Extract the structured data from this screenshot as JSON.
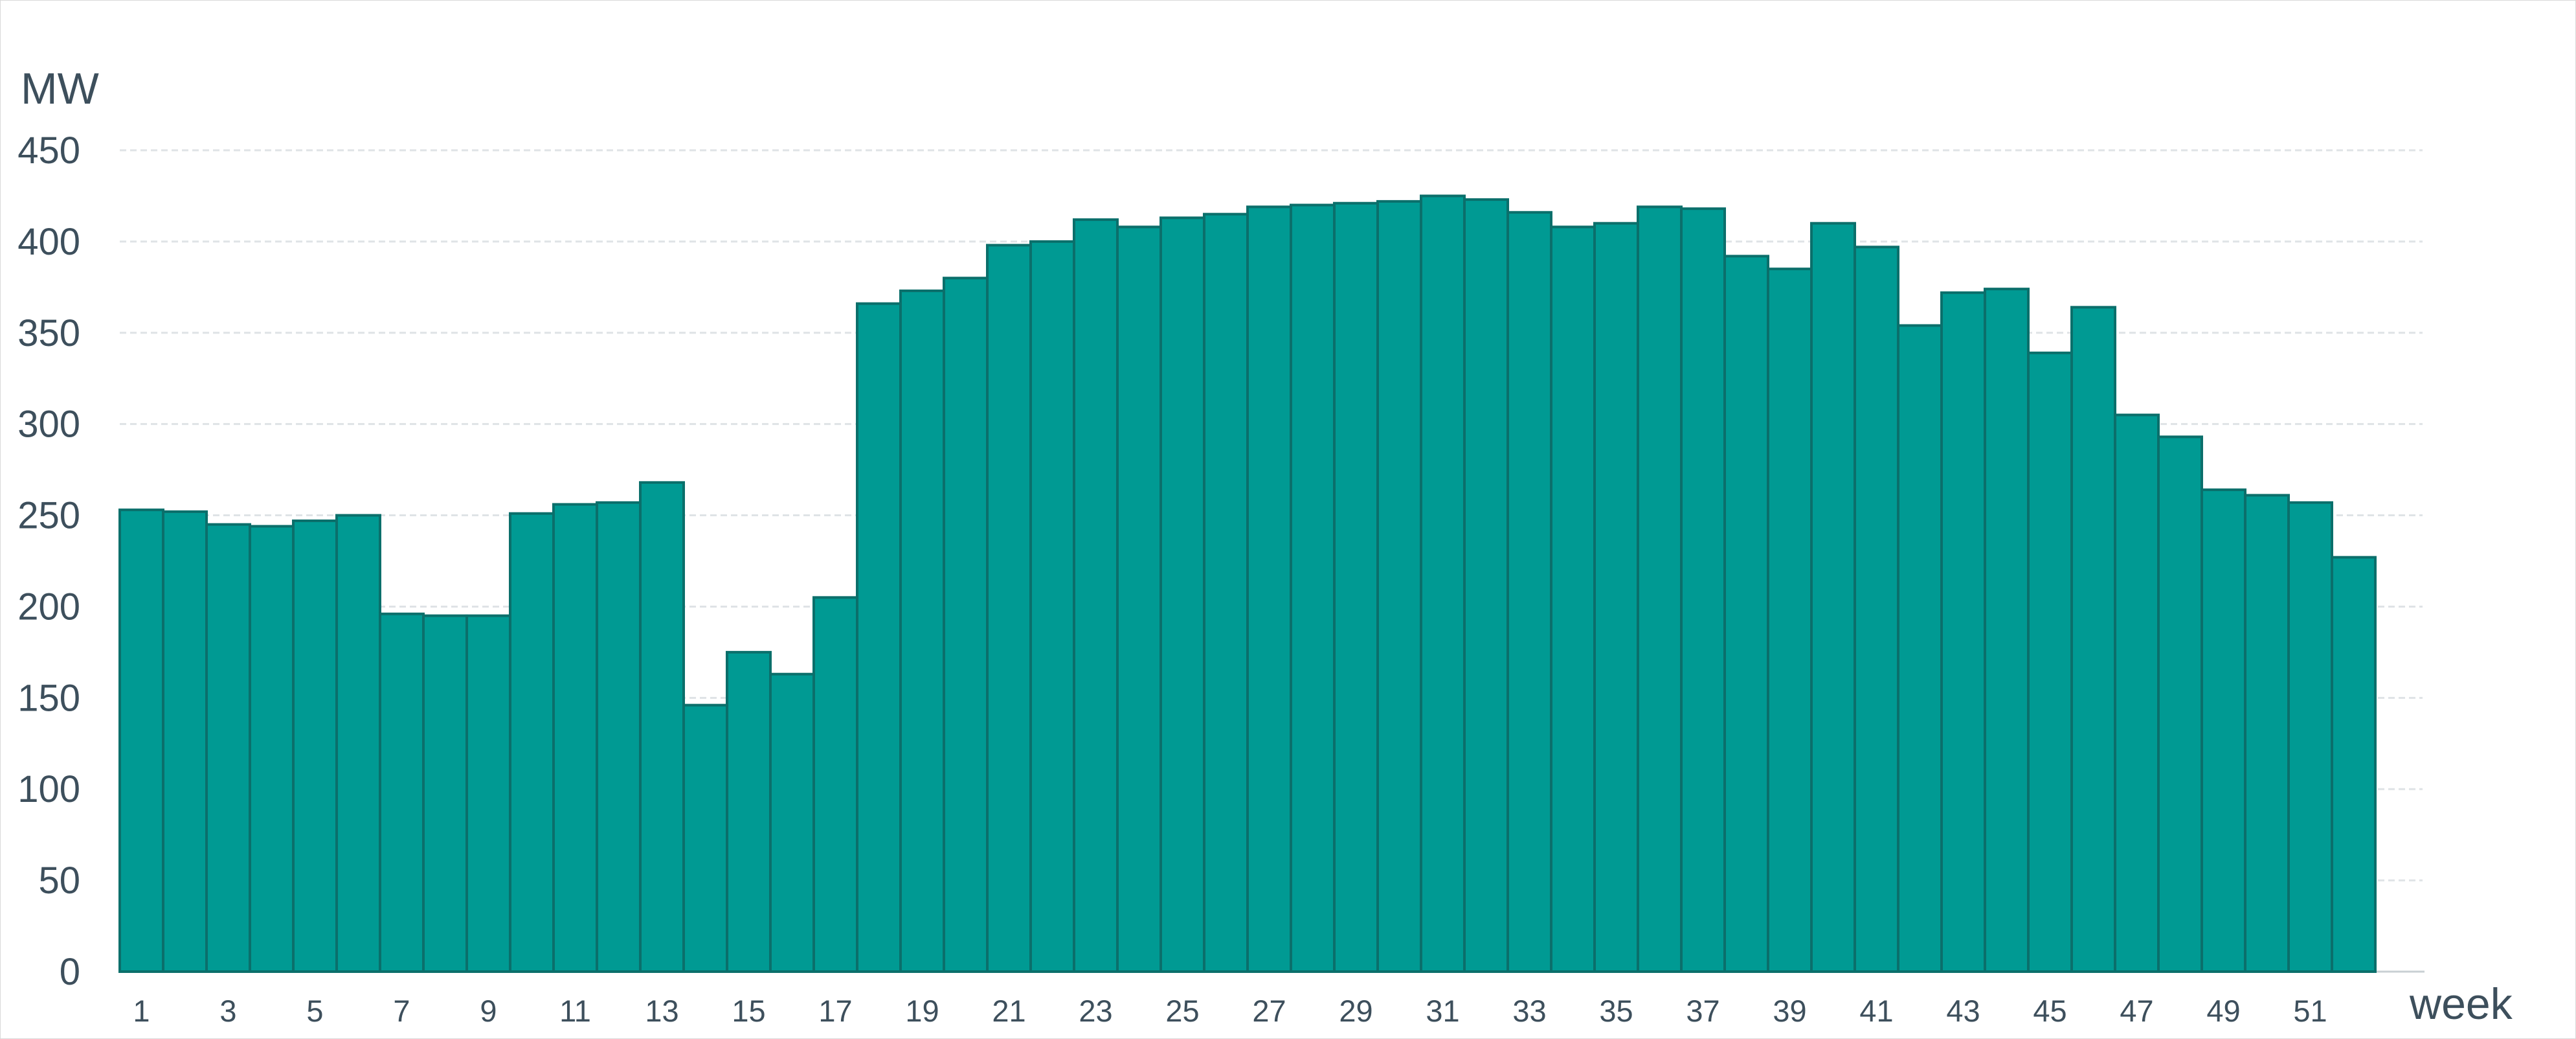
{
  "chart_data": {
    "type": "bar",
    "ylabel": "MW",
    "xlabel": "week",
    "ylim": [
      0,
      450
    ],
    "yticks": [
      0,
      50,
      100,
      150,
      200,
      250,
      300,
      350,
      400,
      450
    ],
    "grid": true,
    "bar_color": "#009a93",
    "bar_edge_color": "#0b6f6b",
    "text_color": "#3d4f5c",
    "xtick_labels": [
      "1",
      "3",
      "5",
      "7",
      "9",
      "11",
      "13",
      "15",
      "17",
      "19",
      "21",
      "23",
      "25",
      "27",
      "29",
      "31",
      "33",
      "35",
      "37",
      "39",
      "41",
      "43",
      "45",
      "47",
      "49",
      "51"
    ],
    "categories": [
      1,
      2,
      3,
      4,
      5,
      6,
      7,
      8,
      9,
      10,
      11,
      12,
      13,
      14,
      15,
      16,
      17,
      18,
      19,
      20,
      21,
      22,
      23,
      24,
      25,
      26,
      27,
      28,
      29,
      30,
      31,
      32,
      33,
      34,
      35,
      36,
      37,
      38,
      39,
      40,
      41,
      42,
      43,
      44,
      45,
      46,
      47,
      48,
      49,
      50,
      51,
      52
    ],
    "values": [
      253,
      252,
      245,
      244,
      247,
      250,
      196,
      195,
      195,
      251,
      256,
      257,
      268,
      146,
      175,
      163,
      205,
      366,
      373,
      380,
      398,
      400,
      412,
      408,
      413,
      415,
      419,
      420,
      421,
      422,
      425,
      423,
      416,
      408,
      410,
      419,
      418,
      392,
      385,
      410,
      397,
      354,
      372,
      374,
      339,
      364,
      305,
      293,
      264,
      261,
      257,
      227
    ]
  }
}
